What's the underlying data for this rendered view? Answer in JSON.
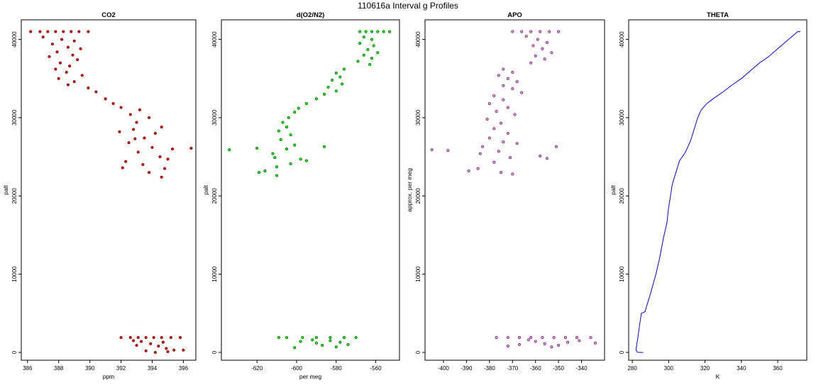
{
  "page_title": "110616a   Interval g Profiles",
  "chart_data": [
    {
      "type": "scatter",
      "title": "CO2",
      "xlabel": "ppm",
      "ylabel": "palt",
      "xlim": [
        385.6,
        396.8
      ],
      "ylim": [
        -1000,
        42500
      ],
      "xticks": [
        386,
        388,
        390,
        392,
        394,
        396
      ],
      "yticks": [
        0,
        10000,
        20000,
        30000,
        40000
      ],
      "color": "#ff0000",
      "edge_color": "#000000",
      "series": [
        {
          "points": [
            [
              386.2,
              41000
            ],
            [
              386.8,
              41000
            ],
            [
              387.3,
              41000
            ],
            [
              387.8,
              41000
            ],
            [
              388.3,
              41000
            ],
            [
              388.8,
              41000
            ],
            [
              389.3,
              41000
            ],
            [
              389.9,
              41000
            ],
            [
              387.0,
              40300
            ],
            [
              388.2,
              40000
            ],
            [
              389.0,
              39800
            ],
            [
              387.6,
              39400
            ],
            [
              388.6,
              39000
            ],
            [
              389.4,
              38800
            ],
            [
              387.9,
              38400
            ],
            [
              388.9,
              38000
            ],
            [
              387.4,
              37800
            ],
            [
              389.2,
              37400
            ],
            [
              388.1,
              37000
            ],
            [
              388.7,
              36600
            ],
            [
              387.8,
              36200
            ],
            [
              388.5,
              35800
            ],
            [
              389.5,
              35400
            ],
            [
              388.0,
              35000
            ],
            [
              389.0,
              34600
            ],
            [
              388.6,
              34200
            ],
            [
              389.9,
              33800
            ],
            [
              390.4,
              33300
            ],
            [
              391.0,
              32400
            ],
            [
              391.5,
              31800
            ],
            [
              392.0,
              31300
            ],
            [
              393.2,
              31000
            ],
            [
              392.6,
              30400
            ],
            [
              393.8,
              30000
            ],
            [
              393.0,
              29400
            ],
            [
              392.8,
              28500
            ],
            [
              394.2,
              28000
            ],
            [
              393.5,
              27400
            ],
            [
              392.5,
              26800
            ],
            [
              394.0,
              26200
            ],
            [
              393.1,
              25600
            ],
            [
              394.5,
              25000
            ],
            [
              392.3,
              24400
            ],
            [
              393.4,
              24000
            ],
            [
              394.8,
              23500
            ],
            [
              393.8,
              23000
            ],
            [
              394.6,
              22400
            ],
            [
              396.5,
              26100
            ],
            [
              395.0,
              24700
            ],
            [
              392.1,
              23600
            ],
            [
              395.3,
              26000
            ],
            [
              394.6,
              28800
            ],
            [
              391.9,
              28200
            ],
            [
              392.9,
              27300
            ],
            [
              392.0,
              1900
            ],
            [
              392.6,
              1900
            ],
            [
              393.1,
              1900
            ],
            [
              393.6,
              1900
            ],
            [
              394.1,
              1900
            ],
            [
              394.6,
              1900
            ],
            [
              395.2,
              1900
            ],
            [
              395.8,
              1900
            ],
            [
              393.3,
              1400
            ],
            [
              393.9,
              1100
            ],
            [
              394.4,
              800
            ],
            [
              394.9,
              500
            ],
            [
              395.4,
              300
            ],
            [
              393.6,
              200
            ],
            [
              394.2,
              0
            ],
            [
              395.0,
              100
            ],
            [
              396.0,
              300
            ],
            [
              393.0,
              900
            ],
            [
              392.8,
              1500
            ],
            [
              394.7,
              1300
            ]
          ]
        }
      ]
    },
    {
      "type": "scatter",
      "title": "d(O2/N2)",
      "xlabel": "per meg",
      "ylabel": "palt",
      "xlim": [
        -638,
        -548
      ],
      "ylim": [
        -1000,
        42500
      ],
      "xticks": [
        -620,
        -600,
        -580,
        -560
      ],
      "yticks": [
        0,
        10000,
        20000,
        30000,
        40000
      ],
      "color": "#00ff00",
      "edge_color": "#000000",
      "series": [
        {
          "points": [
            [
              -568,
              41000
            ],
            [
              -565,
              41000
            ],
            [
              -562,
              41000
            ],
            [
              -559,
              41000
            ],
            [
              -556,
              41000
            ],
            [
              -553,
              41000
            ],
            [
              -566,
              40300
            ],
            [
              -562,
              40000
            ],
            [
              -568,
              39500
            ],
            [
              -561,
              39200
            ],
            [
              -564,
              38700
            ],
            [
              -559,
              38300
            ],
            [
              -566,
              38000
            ],
            [
              -562,
              37600
            ],
            [
              -569,
              37200
            ],
            [
              -563,
              36800
            ],
            [
              -576,
              36200
            ],
            [
              -580,
              35700
            ],
            [
              -578,
              35200
            ],
            [
              -582,
              34800
            ],
            [
              -577,
              34300
            ],
            [
              -584,
              33900
            ],
            [
              -580,
              33400
            ],
            [
              -586,
              33000
            ],
            [
              -590,
              32400
            ],
            [
              -595,
              31800
            ],
            [
              -599,
              31200
            ],
            [
              -601,
              30700
            ],
            [
              -604,
              30000
            ],
            [
              -607,
              29400
            ],
            [
              -605,
              28800
            ],
            [
              -609,
              28300
            ],
            [
              -603,
              27800
            ],
            [
              -608,
              27200
            ],
            [
              -601,
              26500
            ],
            [
              -605,
              26000
            ],
            [
              -612,
              25400
            ],
            [
              -598,
              24700
            ],
            [
              -603,
              24100
            ],
            [
              -620,
              26100
            ],
            [
              -610,
              23700
            ],
            [
              -616,
              23200
            ],
            [
              -610,
              22600
            ],
            [
              -634,
              25900
            ],
            [
              -586,
              26300
            ],
            [
              -595,
              24500
            ],
            [
              -611,
              24900
            ],
            [
              -619,
              23000
            ],
            [
              -605,
              1900
            ],
            [
              -597,
              1900
            ],
            [
              -590,
              1900
            ],
            [
              -583,
              1900
            ],
            [
              -576,
              1900
            ],
            [
              -570,
              1900
            ],
            [
              -609,
              1900
            ],
            [
              -598,
              1400
            ],
            [
              -590,
              1200
            ],
            [
              -583,
              1500
            ],
            [
              -578,
              1300
            ],
            [
              -587,
              900
            ],
            [
              -580,
              700
            ],
            [
              -601,
              600
            ],
            [
              -574,
              1000
            ],
            [
              -592,
              1600
            ]
          ]
        }
      ]
    },
    {
      "type": "scatter",
      "title": "APO",
      "xlabel": "",
      "ylabel": "approx. per meg",
      "xlim": [
        -408,
        -330
      ],
      "ylim": [
        -1000,
        42500
      ],
      "xticks": [
        -400,
        -390,
        -380,
        -370,
        -360,
        -350,
        -340
      ],
      "yticks": [
        0,
        10000,
        20000,
        30000,
        40000
      ],
      "color": "#ee82ee",
      "edge_color": "#000000",
      "series": [
        {
          "points": [
            [
              -370,
              41000
            ],
            [
              -366,
              41000
            ],
            [
              -362,
              41000
            ],
            [
              -358,
              41000
            ],
            [
              -354,
              41000
            ],
            [
              -350,
              41000
            ],
            [
              -364,
              40400
            ],
            [
              -359,
              40000
            ],
            [
              -355,
              39600
            ],
            [
              -361,
              39200
            ],
            [
              -357,
              38800
            ],
            [
              -353,
              38300
            ],
            [
              -360,
              37900
            ],
            [
              -356,
              37500
            ],
            [
              -362,
              37000
            ],
            [
              -374,
              36200
            ],
            [
              -370,
              35800
            ],
            [
              -376,
              35400
            ],
            [
              -372,
              35000
            ],
            [
              -368,
              34600
            ],
            [
              -374,
              34100
            ],
            [
              -370,
              33700
            ],
            [
              -366,
              33200
            ],
            [
              -378,
              32800
            ],
            [
              -374,
              32300
            ],
            [
              -380,
              31800
            ],
            [
              -372,
              31300
            ],
            [
              -377,
              30800
            ],
            [
              -369,
              30400
            ],
            [
              -381,
              29800
            ],
            [
              -375,
              29300
            ],
            [
              -378,
              28600
            ],
            [
              -372,
              28000
            ],
            [
              -380,
              27400
            ],
            [
              -374,
              26900
            ],
            [
              -383,
              26300
            ],
            [
              -368,
              26700
            ],
            [
              -376,
              25700
            ],
            [
              -384,
              25400
            ],
            [
              -371,
              24900
            ],
            [
              -378,
              24300
            ],
            [
              -385,
              23500
            ],
            [
              -375,
              23000
            ],
            [
              -389,
              23200
            ],
            [
              -370,
              22800
            ],
            [
              -405,
              25900
            ],
            [
              -398,
              25800
            ],
            [
              -358,
              25100
            ],
            [
              -351,
              26300
            ],
            [
              -355,
              24800
            ],
            [
              -377,
              1900
            ],
            [
              -372,
              1900
            ],
            [
              -367,
              1900
            ],
            [
              -362,
              1900
            ],
            [
              -357,
              1900
            ],
            [
              -352,
              1900
            ],
            [
              -347,
              1900
            ],
            [
              -342,
              1900
            ],
            [
              -336,
              1900
            ],
            [
              -360,
              1400
            ],
            [
              -356,
              1100
            ],
            [
              -350,
              900
            ],
            [
              -346,
              1300
            ],
            [
              -353,
              700
            ],
            [
              -367,
              1000
            ],
            [
              -372,
              800
            ],
            [
              -334,
              1200
            ],
            [
              -341,
              1500
            ],
            [
              -363,
              1600
            ]
          ]
        }
      ]
    },
    {
      "type": "line",
      "title": "THETA",
      "xlabel": "K",
      "ylabel": "palt",
      "xlim": [
        278,
        376
      ],
      "ylim": [
        -1000,
        42500
      ],
      "xticks": [
        280,
        300,
        320,
        340,
        360
      ],
      "yticks": [
        0,
        10000,
        20000,
        30000,
        40000
      ],
      "color": "#0000ff",
      "series": [
        {
          "points": [
            [
              286,
              0
            ],
            [
              283,
              0
            ],
            [
              282,
              300
            ],
            [
              283,
              1800
            ],
            [
              284,
              3500
            ],
            [
              285,
              5000
            ],
            [
              287,
              5200
            ],
            [
              288,
              6000
            ],
            [
              290,
              7500
            ],
            [
              293,
              10000
            ],
            [
              295,
              12000
            ],
            [
              297,
              14500
            ],
            [
              299,
              16500
            ],
            [
              300,
              18500
            ],
            [
              301,
              20000
            ],
            [
              302,
              21500
            ],
            [
              304,
              23000
            ],
            [
              306,
              24500
            ],
            [
              309,
              25500
            ],
            [
              312,
              27000
            ],
            [
              314,
              28500
            ],
            [
              316,
              30000
            ],
            [
              318,
              31000
            ],
            [
              321,
              31800
            ],
            [
              325,
              32500
            ],
            [
              330,
              33300
            ],
            [
              335,
              34200
            ],
            [
              340,
              35000
            ],
            [
              345,
              36000
            ],
            [
              350,
              37000
            ],
            [
              355,
              37800
            ],
            [
              360,
              38800
            ],
            [
              365,
              39800
            ],
            [
              368,
              40400
            ],
            [
              371,
              41000
            ],
            [
              372.5,
              41000
            ]
          ]
        }
      ]
    }
  ]
}
